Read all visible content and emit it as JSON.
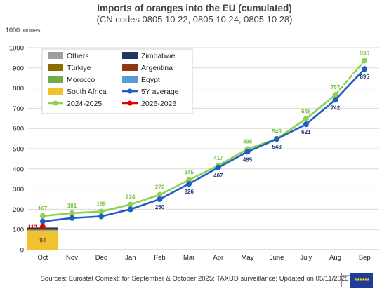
{
  "title": "Imports of oranges into the EU (cumulated)",
  "subtitle": "(CN codes 0805 10 22, 0805 10 24, 0805 10 28)",
  "unit_label": "1000 tonnes",
  "source": "Sources: Eurostat Comext; for September & October 2025: TAXUD surveillance; Updated on 05/11/2025",
  "colors": {
    "others": "#9e9e9e",
    "zimbabwe": "#1f3864",
    "turkiye": "#8b6d00",
    "argentina": "#8b3a0f",
    "morocco": "#70ad47",
    "egypt": "#5b9bd5",
    "south_africa": "#f2c12e",
    "avg5y": "#1f5fc4",
    "y2425": "#8fd14f",
    "y2526": "#e00000"
  },
  "chart_data": {
    "type": "line",
    "categories": [
      "Oct",
      "Nov",
      "Dec",
      "Jan",
      "Feb",
      "Mar",
      "Apr",
      "May",
      "June",
      "July",
      "Aug",
      "Sep"
    ],
    "ylim": [
      0,
      1000
    ],
    "yticks": [
      "0",
      "100",
      "200",
      "300",
      "400",
      "500",
      "600",
      "700",
      "800",
      "900",
      "1000"
    ],
    "grid": true,
    "legend": "top-left",
    "legend_entries": [
      "Others",
      "Zimbabwe",
      "Türkiye",
      "Argentina",
      "Morocco",
      "Egypt",
      "South Africa",
      "5Y  average",
      "2024-2025",
      "2025-2026"
    ],
    "series": [
      {
        "name": "5Y  average",
        "kind": "line",
        "values": [
          140,
          157,
          165,
          200,
          250,
          326,
          407,
          485,
          548,
          621,
          742,
          895
        ],
        "labels": [
          null,
          null,
          null,
          null,
          "250",
          "326",
          "407",
          "485",
          "548",
          "621",
          "742",
          "895"
        ]
      },
      {
        "name": "2024-2025",
        "kind": "line",
        "values": [
          167,
          181,
          189,
          224,
          272,
          345,
          417,
          498,
          549,
          648,
          767,
          936
        ],
        "dashed_last_segment": true,
        "labels": [
          "167",
          "181",
          "189",
          "224",
          "272",
          "345",
          "417",
          "498",
          "549",
          "648",
          "767",
          "936"
        ]
      },
      {
        "name": "2025-2026",
        "kind": "point",
        "values": [
          113,
          null,
          null,
          null,
          null,
          null,
          null,
          null,
          null,
          null,
          null,
          null
        ],
        "labels": [
          "113"
        ]
      }
    ],
    "stacked_bar_oct": [
      {
        "name": "South Africa",
        "value": 94,
        "label": "94"
      },
      {
        "name": "Egypt",
        "value": 2
      },
      {
        "name": "Morocco",
        "value": 2
      },
      {
        "name": "Argentina",
        "value": 4
      },
      {
        "name": "Türkiye",
        "value": 2
      },
      {
        "name": "Zimbabwe",
        "value": 5
      },
      {
        "name": "Others",
        "value": 4
      }
    ]
  }
}
